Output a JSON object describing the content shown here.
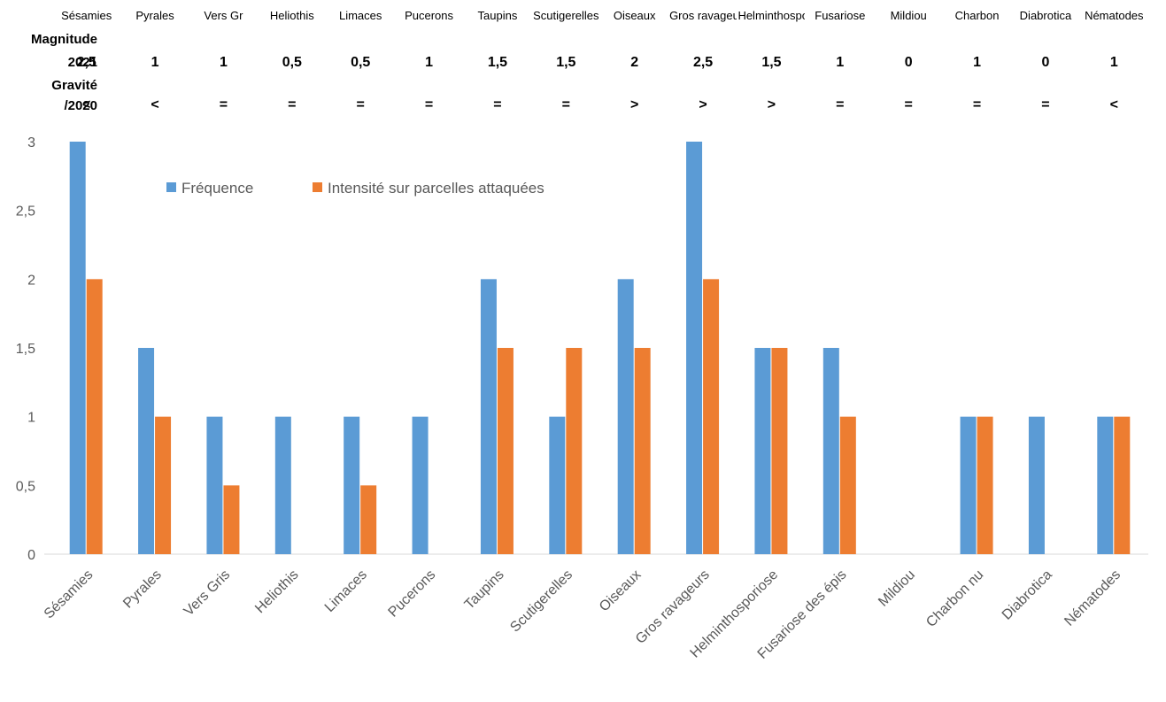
{
  "table": {
    "row_labels": {
      "magnitude": "Magnitude",
      "year": "2021",
      "gravite": "Gravité",
      "vs": "/2020"
    },
    "headers": [
      "Sésamies",
      "Pyrales",
      "Vers Gr",
      "Heliothis",
      "Limaces",
      "Pucerons",
      "Taupins",
      "Scutigerelles",
      "Oiseaux",
      "Gros ravageurs",
      "Helminthosporiose",
      "Fusariose",
      "Mildiou",
      "Charbon",
      "Diabrotica",
      "Nématodes"
    ],
    "magnitude_2021": [
      "2,5",
      "1",
      "1",
      "0,5",
      "0,5",
      "1",
      "1,5",
      "1,5",
      "2",
      "2,5",
      "1,5",
      "1",
      "0",
      "1",
      "0",
      "1"
    ],
    "gravite_vs_2020": [
      "<",
      "<",
      "=",
      "=",
      "=",
      "=",
      "=",
      "=",
      ">",
      ">",
      ">",
      "=",
      "=",
      "=",
      "=",
      "<"
    ]
  },
  "chart_data": {
    "type": "bar",
    "categories": [
      "Sésamies",
      "Pyrales",
      "Vers Gris",
      "Heliothis",
      "Limaces",
      "Pucerons",
      "Taupins",
      "Scutigerelles",
      "Oiseaux",
      "Gros ravageurs",
      "Helminthosporiose",
      "Fusariose des épis",
      "Mildiou",
      "Charbon nu",
      "Diabrotica",
      "Nématodes"
    ],
    "series": [
      {
        "name": "Fréquence",
        "color": "#5B9BD5",
        "values": [
          3,
          1.5,
          1,
          1,
          1,
          1,
          2,
          1,
          2,
          3,
          1.5,
          1.5,
          0,
          1,
          1,
          1
        ]
      },
      {
        "name": "Intensité sur parcelles attaquées",
        "color": "#ED7D31",
        "values": [
          2,
          1,
          0.5,
          0,
          0.5,
          0,
          1.5,
          1.5,
          1.5,
          2,
          1.5,
          1,
          0,
          1,
          0,
          1
        ]
      }
    ],
    "ylim": [
      0,
      3
    ],
    "yticks": [
      "0",
      "0,5",
      "1",
      "1,5",
      "2",
      "2,5",
      "3"
    ],
    "ytick_values": [
      0,
      0.5,
      1,
      1.5,
      2,
      2.5,
      3
    ],
    "legend": "top-left",
    "grid": false
  }
}
